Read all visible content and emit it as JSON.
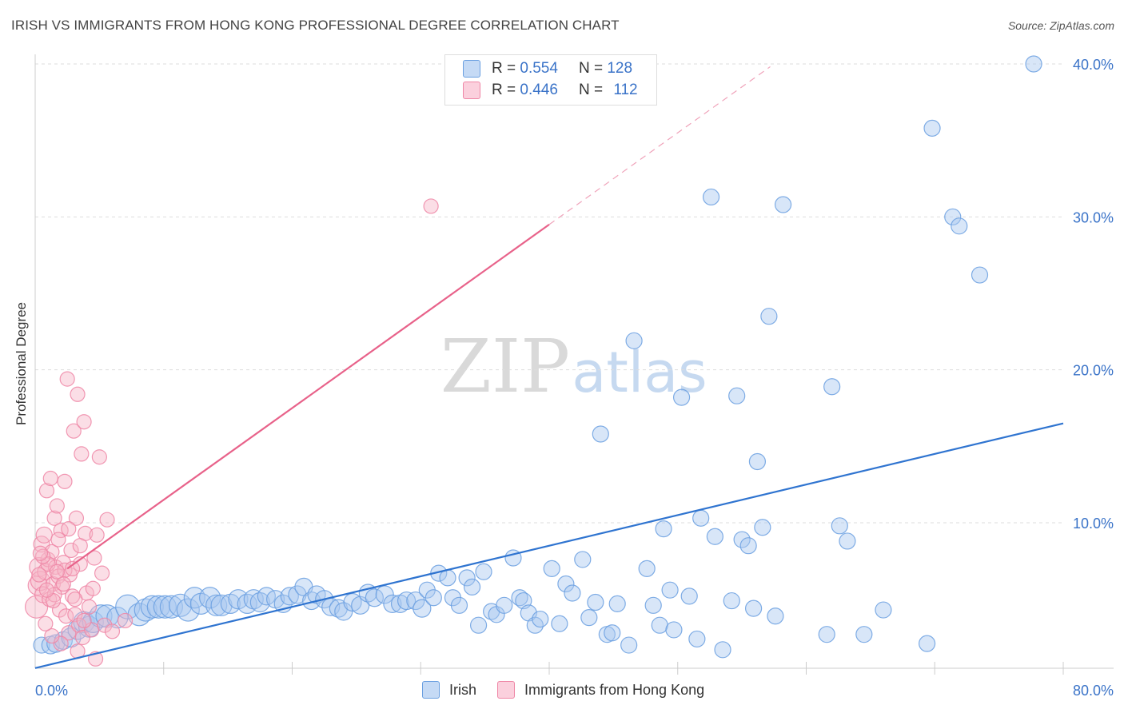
{
  "header": {
    "title": "IRISH VS IMMIGRANTS FROM HONG KONG PROFESSIONAL DEGREE CORRELATION CHART",
    "source": "Source: ZipAtlas.com"
  },
  "watermark": {
    "zip": "ZIP",
    "atlas": "atlas"
  },
  "legend_top": {
    "rows": [
      {
        "r_label": "R =",
        "r_value": "0.554",
        "n_label": "N =",
        "n_value": "128",
        "color": "#a8c8f0"
      },
      {
        "r_label": "R =",
        "r_value": "0.446",
        "n_label": "N =",
        "n_value": "112",
        "color": "#f7b5c8"
      }
    ]
  },
  "legend_bottom": {
    "irish": "Irish",
    "hk": "Immigrants from Hong Kong"
  },
  "colors": {
    "irish_fill": "#a8c8f0",
    "irish_stroke": "#6a9fe0",
    "irish_line": "#2f74d0",
    "hk_fill": "#f7b5c8",
    "hk_stroke": "#ef86a6",
    "hk_line": "#e8628a",
    "tick_text": "#3a73c8"
  },
  "chart_data": {
    "type": "scatter",
    "title": "IRISH VS IMMIGRANTS FROM HONG KONG PROFESSIONAL DEGREE CORRELATION CHART",
    "xlabel": "",
    "ylabel": "Professional Degree",
    "xlim": [
      0,
      80
    ],
    "ylim": [
      0,
      42
    ],
    "x_tick_labels": [
      "0.0%",
      "80.0%"
    ],
    "y_ticks": [
      10,
      20,
      30,
      40
    ],
    "y_tick_labels": [
      "10.0%",
      "20.0%",
      "30.0%",
      "40.0%"
    ],
    "grid": true,
    "legend_position": "top-center",
    "series": [
      {
        "name": "Irish",
        "trend": {
          "x": [
            0,
            80
          ],
          "y": [
            0.5,
            16.5
          ]
        },
        "points": [
          [
            0.5,
            2.0
          ],
          [
            1.2,
            2.0
          ],
          [
            1.6,
            2.1
          ],
          [
            2.2,
            2.3
          ],
          [
            2.8,
            2.5
          ],
          [
            3.3,
            3.0
          ],
          [
            3.8,
            3.5
          ],
          [
            4.2,
            3.2
          ],
          [
            4.5,
            3.5
          ],
          [
            5.1,
            3.9
          ],
          [
            5.6,
            3.9
          ],
          [
            6.4,
            3.8
          ],
          [
            7.2,
            4.5
          ],
          [
            8.1,
            4.0
          ],
          [
            8.6,
            4.3
          ],
          [
            9.1,
            4.5
          ],
          [
            9.6,
            4.5
          ],
          [
            10.1,
            4.5
          ],
          [
            10.6,
            4.5
          ],
          [
            11.3,
            4.6
          ],
          [
            11.9,
            4.3
          ],
          [
            12.4,
            5.1
          ],
          [
            12.9,
            4.7
          ],
          [
            13.6,
            5.1
          ],
          [
            14.1,
            4.6
          ],
          [
            14.5,
            4.6
          ],
          [
            15.2,
            4.7
          ],
          [
            15.8,
            5.0
          ],
          [
            16.5,
            4.7
          ],
          [
            17.0,
            5.0
          ],
          [
            17.5,
            4.8
          ],
          [
            18.0,
            5.2
          ],
          [
            18.7,
            5.0
          ],
          [
            19.3,
            4.7
          ],
          [
            19.8,
            5.2
          ],
          [
            20.4,
            5.3
          ],
          [
            20.9,
            5.8
          ],
          [
            21.5,
            4.9
          ],
          [
            21.9,
            5.3
          ],
          [
            22.5,
            5.0
          ],
          [
            23.0,
            4.5
          ],
          [
            23.6,
            4.4
          ],
          [
            24.0,
            4.2
          ],
          [
            24.7,
            4.8
          ],
          [
            25.3,
            4.6
          ],
          [
            25.9,
            5.4
          ],
          [
            26.4,
            5.1
          ],
          [
            27.2,
            5.3
          ],
          [
            27.8,
            4.7
          ],
          [
            28.4,
            4.7
          ],
          [
            28.9,
            4.9
          ],
          [
            29.6,
            4.9
          ],
          [
            30.1,
            4.4
          ],
          [
            30.5,
            5.6
          ],
          [
            31.0,
            5.1
          ],
          [
            31.4,
            6.7
          ],
          [
            32.1,
            6.4
          ],
          [
            32.5,
            5.1
          ],
          [
            33.0,
            4.6
          ],
          [
            33.6,
            6.4
          ],
          [
            34.0,
            5.8
          ],
          [
            34.5,
            3.3
          ],
          [
            34.9,
            6.8
          ],
          [
            35.5,
            4.2
          ],
          [
            35.9,
            4.0
          ],
          [
            36.5,
            4.6
          ],
          [
            37.2,
            7.7
          ],
          [
            37.7,
            5.1
          ],
          [
            38.0,
            4.9
          ],
          [
            38.4,
            4.1
          ],
          [
            38.9,
            3.3
          ],
          [
            39.3,
            3.7
          ],
          [
            40.2,
            7.0
          ],
          [
            40.8,
            3.4
          ],
          [
            41.3,
            6.0
          ],
          [
            41.8,
            5.4
          ],
          [
            42.6,
            7.6
          ],
          [
            43.1,
            3.8
          ],
          [
            43.6,
            4.8
          ],
          [
            44.0,
            15.8
          ],
          [
            44.5,
            2.7
          ],
          [
            44.9,
            2.8
          ],
          [
            45.3,
            4.7
          ],
          [
            46.2,
            2.0
          ],
          [
            46.6,
            21.9
          ],
          [
            47.6,
            7.0
          ],
          [
            48.1,
            4.6
          ],
          [
            48.6,
            3.3
          ],
          [
            48.9,
            9.6
          ],
          [
            49.4,
            5.6
          ],
          [
            49.7,
            3.0
          ],
          [
            50.3,
            18.2
          ],
          [
            50.9,
            5.2
          ],
          [
            51.5,
            2.4
          ],
          [
            51.8,
            10.3
          ],
          [
            52.6,
            31.3
          ],
          [
            52.9,
            9.1
          ],
          [
            53.5,
            1.7
          ],
          [
            54.2,
            4.9
          ],
          [
            54.6,
            18.3
          ],
          [
            55.0,
            8.9
          ],
          [
            55.5,
            8.5
          ],
          [
            55.9,
            4.4
          ],
          [
            56.2,
            14.0
          ],
          [
            56.6,
            9.7
          ],
          [
            57.1,
            23.5
          ],
          [
            57.6,
            3.9
          ],
          [
            58.2,
            30.8
          ],
          [
            61.6,
            2.7
          ],
          [
            62.0,
            18.9
          ],
          [
            62.6,
            9.8
          ],
          [
            63.2,
            8.8
          ],
          [
            64.5,
            2.7
          ],
          [
            66.0,
            4.3
          ],
          [
            69.4,
            2.1
          ],
          [
            69.8,
            35.8
          ],
          [
            71.4,
            30.0
          ],
          [
            71.9,
            29.4
          ],
          [
            73.5,
            26.2
          ],
          [
            77.7,
            40.0
          ]
        ],
        "sizes": [
          10,
          11,
          11,
          11,
          12,
          12,
          13,
          13,
          13,
          14,
          14,
          13,
          15,
          14,
          14,
          14,
          14,
          14,
          14,
          14,
          14,
          13,
          13,
          13,
          13,
          13,
          12,
          12,
          12,
          12,
          12,
          11,
          11,
          11,
          11,
          11,
          11,
          11,
          11,
          11,
          11,
          11,
          11,
          11,
          11,
          11,
          11,
          11,
          11,
          11,
          11,
          11,
          11,
          10,
          10,
          10,
          10,
          10,
          10,
          10,
          10,
          10,
          10,
          10,
          10,
          10,
          10,
          10,
          10,
          10,
          10,
          10,
          10,
          10,
          10,
          10,
          10,
          10,
          10,
          10,
          10,
          10,
          10,
          10,
          10,
          10,
          10,
          10,
          10,
          10,
          10,
          10,
          10,
          10,
          10,
          10,
          10,
          10,
          10,
          10,
          10,
          10,
          10,
          10,
          10,
          10,
          10,
          10,
          10,
          10,
          10,
          10,
          10,
          10,
          10,
          10,
          10,
          10,
          10,
          10,
          10,
          10,
          10,
          10,
          10,
          10,
          10,
          10
        ]
      },
      {
        "name": "Immigrants from Hong Kong",
        "trend": {
          "x": [
            2.5,
            40.0
          ],
          "y": [
            7.0,
            29.5
          ]
        },
        "points": [
          [
            0.1,
            4.5
          ],
          [
            0.2,
            5.9
          ],
          [
            0.3,
            7.1
          ],
          [
            0.4,
            6.2
          ],
          [
            0.5,
            8.6
          ],
          [
            0.6,
            5.3
          ],
          [
            0.7,
            9.2
          ],
          [
            0.8,
            6.8
          ],
          [
            0.9,
            12.1
          ],
          [
            1.0,
            7.6
          ],
          [
            1.1,
            5.0
          ],
          [
            1.2,
            12.9
          ],
          [
            1.3,
            8.1
          ],
          [
            1.4,
            6.0
          ],
          [
            1.5,
            10.3
          ],
          [
            1.6,
            7.1
          ],
          [
            1.7,
            11.1
          ],
          [
            1.8,
            6.5
          ],
          [
            1.9,
            4.3
          ],
          [
            2.0,
            9.5
          ],
          [
            2.1,
            5.8
          ],
          [
            2.2,
            7.4
          ],
          [
            2.3,
            12.7
          ],
          [
            2.4,
            3.9
          ],
          [
            2.5,
            19.4
          ],
          [
            2.6,
            2.8
          ],
          [
            2.7,
            6.6
          ],
          [
            2.8,
            8.2
          ],
          [
            2.9,
            5.2
          ],
          [
            3.0,
            16.0
          ],
          [
            3.1,
            4.0
          ],
          [
            3.2,
            10.3
          ],
          [
            3.3,
            18.4
          ],
          [
            3.4,
            3.3
          ],
          [
            3.5,
            7.3
          ],
          [
            3.6,
            14.5
          ],
          [
            3.7,
            2.5
          ],
          [
            3.8,
            16.6
          ],
          [
            3.9,
            9.3
          ],
          [
            4.0,
            5.4
          ],
          [
            4.2,
            4.5
          ],
          [
            4.4,
            3.0
          ],
          [
            4.6,
            7.7
          ],
          [
            4.8,
            9.2
          ],
          [
            5.0,
            14.3
          ],
          [
            5.2,
            6.7
          ],
          [
            5.4,
            3.3
          ],
          [
            5.6,
            10.2
          ],
          [
            6.0,
            2.9
          ],
          [
            7.0,
            3.6
          ],
          [
            4.7,
            1.1
          ],
          [
            3.3,
            1.6
          ],
          [
            2.0,
            2.1
          ],
          [
            1.3,
            2.6
          ],
          [
            0.8,
            3.4
          ],
          [
            1.5,
            5.3
          ],
          [
            2.3,
            6.9
          ],
          [
            3.1,
            5.0
          ],
          [
            1.0,
            7.3
          ],
          [
            1.8,
            8.9
          ],
          [
            0.6,
            7.8
          ],
          [
            2.6,
            9.6
          ],
          [
            0.3,
            6.6
          ],
          [
            1.4,
            4.9
          ],
          [
            2.9,
            7.0
          ],
          [
            3.8,
            3.6
          ],
          [
            4.5,
            5.7
          ],
          [
            0.9,
            5.6
          ],
          [
            2.2,
            6.0
          ],
          [
            1.7,
            6.8
          ],
          [
            0.4,
            8.0
          ],
          [
            3.5,
            8.5
          ],
          [
            30.8,
            30.7
          ]
        ],
        "sizes": [
          14,
          12,
          12,
          12,
          10,
          10,
          10,
          10,
          9,
          9,
          9,
          9,
          9,
          9,
          9,
          9,
          9,
          9,
          9,
          9,
          9,
          9,
          9,
          9,
          9,
          9,
          9,
          9,
          9,
          9,
          9,
          9,
          9,
          9,
          9,
          9,
          9,
          9,
          9,
          9,
          9,
          9,
          9,
          9,
          9,
          9,
          9,
          9,
          9,
          9,
          9,
          9,
          9,
          9,
          9,
          9,
          9,
          9,
          9,
          9,
          9,
          9,
          9,
          9,
          9,
          9,
          9,
          9,
          9,
          9,
          9,
          9,
          9
        ]
      }
    ]
  }
}
